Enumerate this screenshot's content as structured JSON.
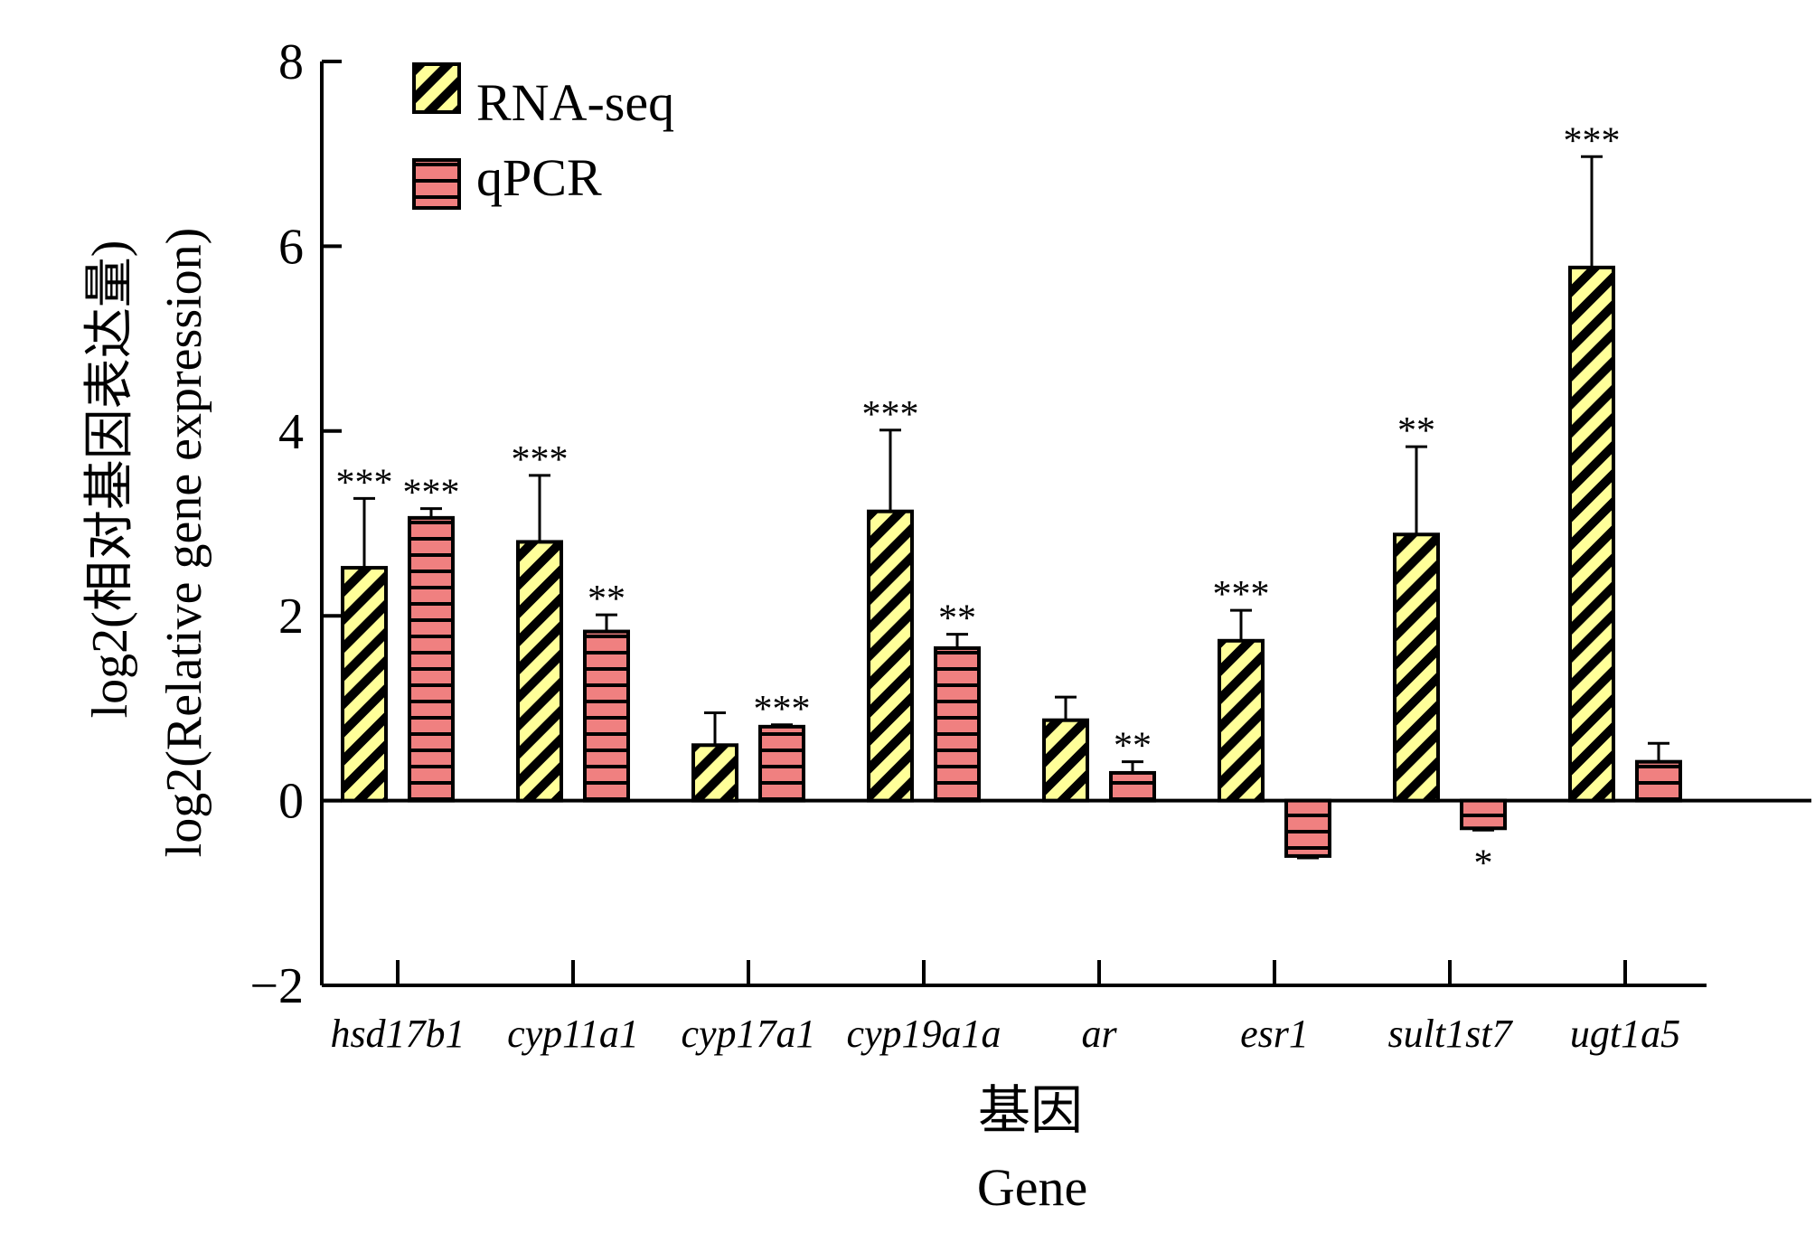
{
  "chart_data": {
    "type": "bar",
    "title": "",
    "ylabel_lines": [
      "log2(相对基因表达量)",
      "log2(Relative gene expression)"
    ],
    "xlabel_lines": [
      "基因",
      "Gene"
    ],
    "ylim": [
      -2,
      8
    ],
    "yticks": [
      -2,
      0,
      2,
      4,
      6,
      8
    ],
    "ytick_labels": [
      "−2",
      "0",
      "2",
      "4",
      "6",
      "8"
    ],
    "grid": false,
    "legend_position": "top-left",
    "categories": [
      "hsd17b1",
      "cyp11a1",
      "cyp17a1",
      "cyp19a1a",
      "ar",
      "esr1",
      "sult1st7",
      "ugt1a5"
    ],
    "series": [
      {
        "name": "RNA-seq",
        "color": "#ffff99",
        "pattern": "diagonal-hatch",
        "values": [
          2.52,
          2.8,
          0.6,
          3.13,
          0.87,
          1.73,
          2.88,
          5.77
        ],
        "errors": [
          0.75,
          0.72,
          0.35,
          0.88,
          0.25,
          0.33,
          0.95,
          1.2
        ],
        "significance": [
          "***",
          "***",
          "",
          "***",
          "",
          "***",
          "**",
          "***"
        ]
      },
      {
        "name": "qPCR",
        "color": "#f08080",
        "pattern": "horizontal-stripes",
        "values": [
          3.06,
          1.83,
          0.8,
          1.65,
          0.3,
          -0.6,
          -0.3,
          0.42
        ],
        "errors": [
          0.1,
          0.18,
          0.02,
          0.15,
          0.12,
          0.02,
          0.02,
          0.2
        ],
        "significance": [
          "***",
          "**",
          "***",
          "**",
          "**",
          "",
          "*",
          ""
        ]
      }
    ]
  }
}
